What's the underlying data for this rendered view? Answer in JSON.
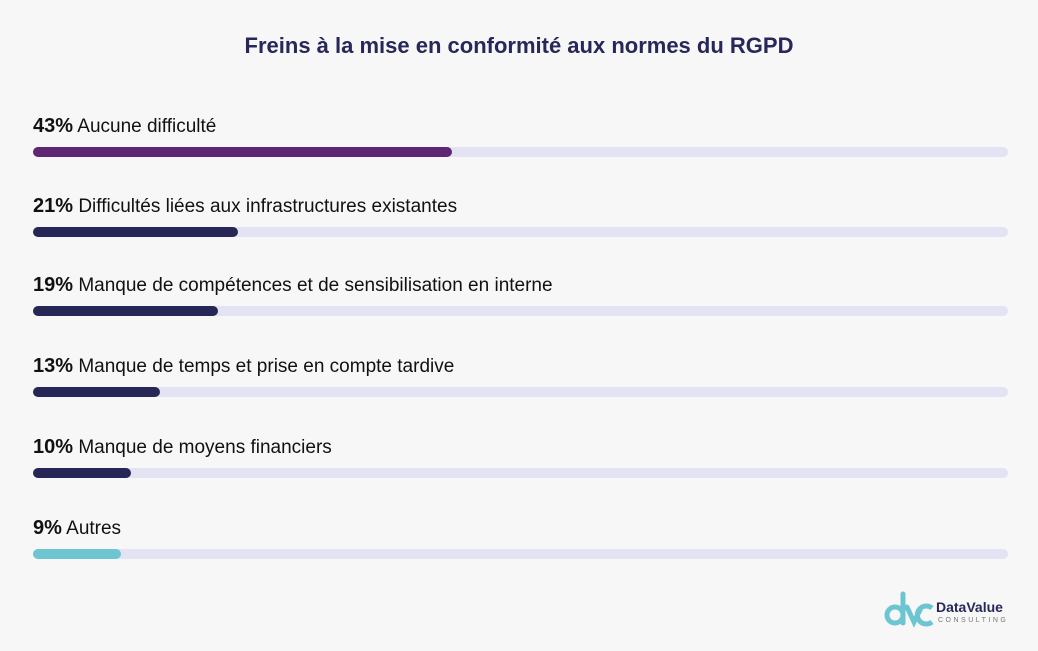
{
  "chart_data": {
    "type": "bar",
    "orientation": "horizontal",
    "title": "Freins à la mise en conformité aux normes du RGPD",
    "xlim": [
      0,
      100
    ],
    "grid": false,
    "items": [
      {
        "pct": "43%",
        "label": "Aucune difficulté",
        "value": 43,
        "color": "#5f2671"
      },
      {
        "pct": "21%",
        "label": "Difficultés liées aux infrastructures existantes",
        "value": 21,
        "color": "#272757"
      },
      {
        "pct": "19%",
        "label": "Manque de compétences et de sensibilisation en interne",
        "value": 19,
        "color": "#272757"
      },
      {
        "pct": "13%",
        "label": "Manque de temps et prise en compte tardive",
        "value": 13,
        "color": "#272757"
      },
      {
        "pct": "10%",
        "label": "Manque de moyens financiers",
        "value": 10,
        "color": "#272757"
      },
      {
        "pct": "9%",
        "label": "Autres",
        "value": 9,
        "color": "#6cc5d1"
      }
    ],
    "track_color": "#e3e3f3"
  },
  "logo": {
    "brand": "DataValue",
    "sub": "CONSULTING"
  }
}
